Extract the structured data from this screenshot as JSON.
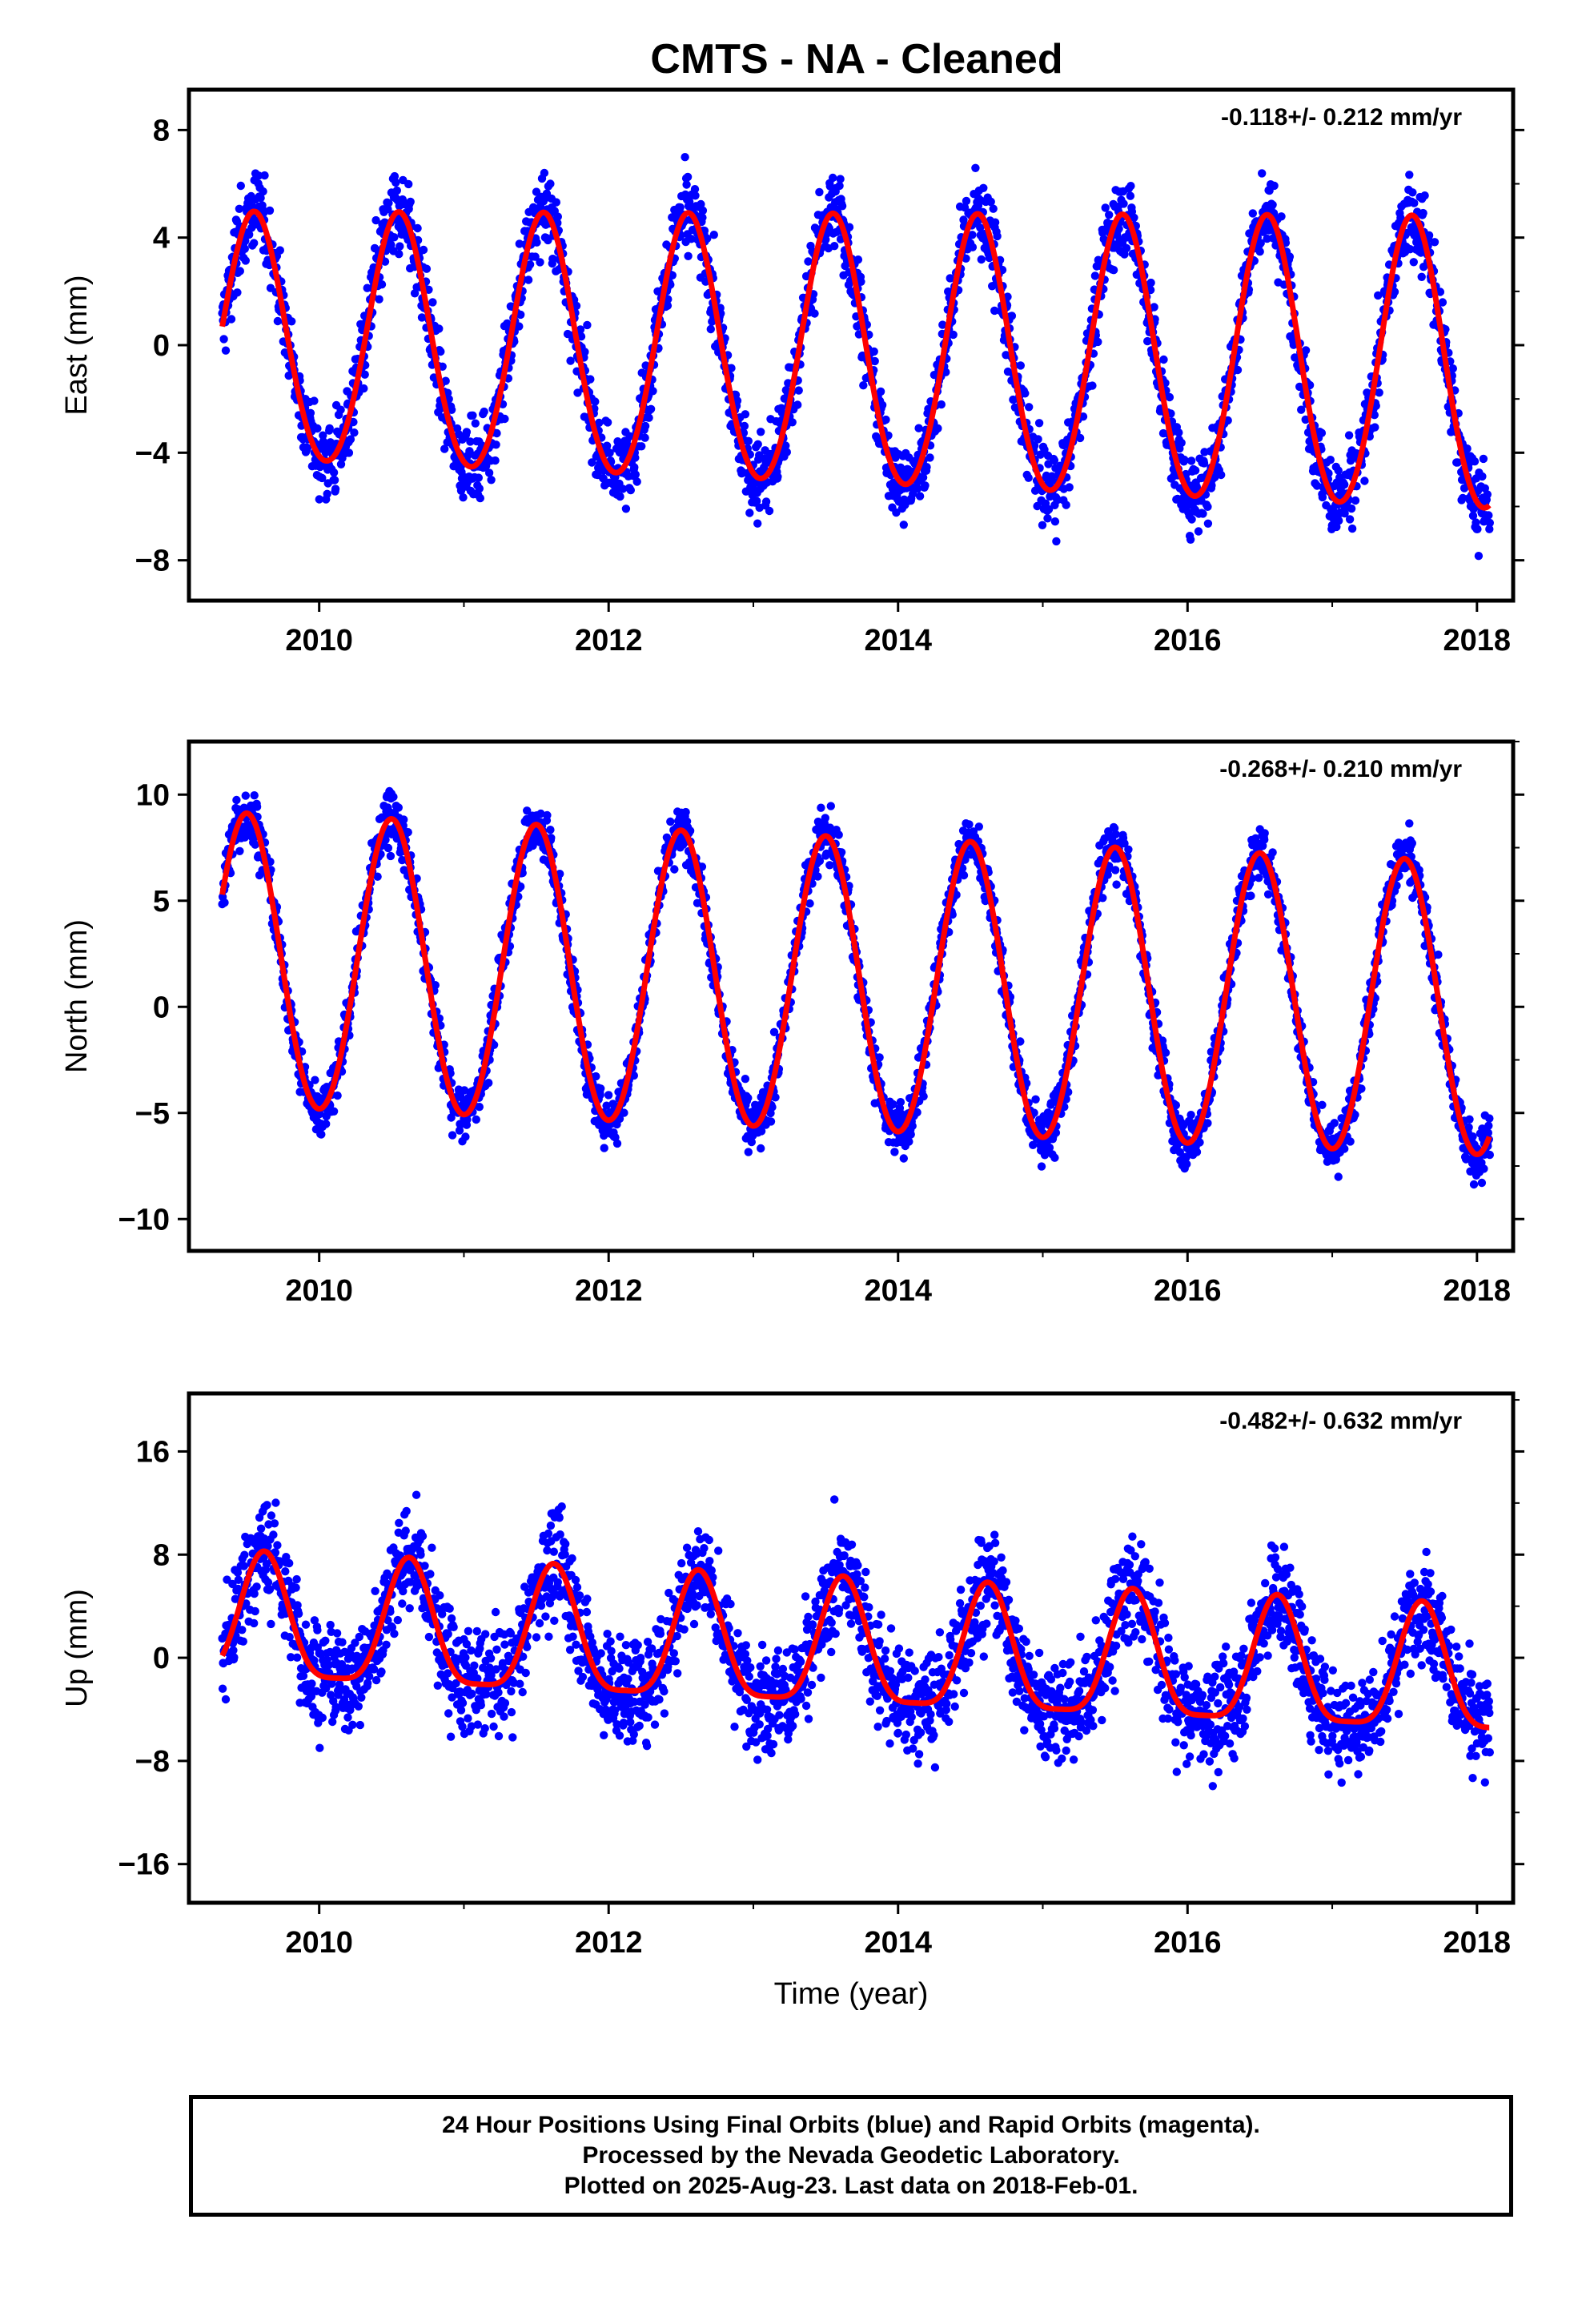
{
  "title": "CMTS  - NA - Cleaned",
  "colors": {
    "data_points": "#0000ff",
    "fit_line": "#ff0000",
    "axes": "#000000",
    "background": "#ffffff"
  },
  "xlabel": "Time (year)",
  "footer": {
    "line1": "24 Hour Positions Using Final Orbits (blue) and Rapid Orbits (magenta).",
    "line2": "Processed by the Nevada Geodetic Laboratory.",
    "line3": "Plotted on 2025-Aug-23. Last data on 2018-Feb-01."
  },
  "chart_data": [
    {
      "type": "scatter",
      "ylabel": "East (mm)",
      "rate_text": "-0.118+/- 0.212 mm/yr",
      "xlim": [
        2009.1,
        2018.25
      ],
      "ylim": [
        -9.5,
        9.5
      ],
      "xticks": [
        2010,
        2012,
        2014,
        2016,
        2018
      ],
      "yticks": [
        -8,
        -4,
        0,
        4,
        8
      ],
      "grid": false,
      "model": {
        "start": 2009.33,
        "end": 2018.09,
        "ref_year": 2013.7,
        "offset": -0.4,
        "trend": -0.118,
        "amplitude": 5.0,
        "amplitude_trend": 0.1,
        "peak_phase": 0.55,
        "semiannual": 0.3,
        "noise_sd": 1.4
      },
      "series": [
        {
          "kind": "points",
          "values": "daily positions, final orbits"
        },
        {
          "kind": "line",
          "values": "model fit"
        }
      ]
    },
    {
      "type": "scatter",
      "ylabel": "North (mm)",
      "rate_text": "-0.268+/- 0.210 mm/yr",
      "xlim": [
        2009.1,
        2018.25
      ],
      "ylim": [
        -11.5,
        12.5
      ],
      "xticks": [
        2010,
        2012,
        2014,
        2016,
        2018
      ],
      "yticks": [
        -10,
        -5,
        0,
        5,
        10
      ],
      "grid": false,
      "model": {
        "start": 2009.33,
        "end": 2018.09,
        "ref_year": 2013.7,
        "offset": 0.9,
        "trend": -0.268,
        "amplitude": 6.9,
        "amplitude_trend": 0.0,
        "peak_phase": 0.5,
        "semiannual": 0.2,
        "noise_sd": 1.2
      },
      "series": [
        {
          "kind": "points",
          "values": "daily positions, final orbits"
        },
        {
          "kind": "line",
          "values": "model fit"
        }
      ]
    },
    {
      "type": "scatter",
      "ylabel": "Up (mm)",
      "rate_text": "-0.482+/- 0.632 mm/yr",
      "xlim": [
        2009.1,
        2018.25
      ],
      "ylim": [
        -19,
        20.5
      ],
      "xticks": [
        2010,
        2012,
        2014,
        2016,
        2018
      ],
      "yticks": [
        -16,
        -8,
        0,
        8,
        16
      ],
      "grid": false,
      "model": {
        "start": 2009.33,
        "end": 2018.09,
        "ref_year": 2013.7,
        "offset": 0.3,
        "trend": -0.482,
        "amplitude": 4.8,
        "amplitude_trend": 0.0,
        "peak_phase": 0.62,
        "semiannual": 1.2,
        "noise_sd": 3.8
      },
      "series": [
        {
          "kind": "points",
          "values": "daily positions, final orbits"
        },
        {
          "kind": "line",
          "values": "model fit"
        }
      ]
    }
  ]
}
